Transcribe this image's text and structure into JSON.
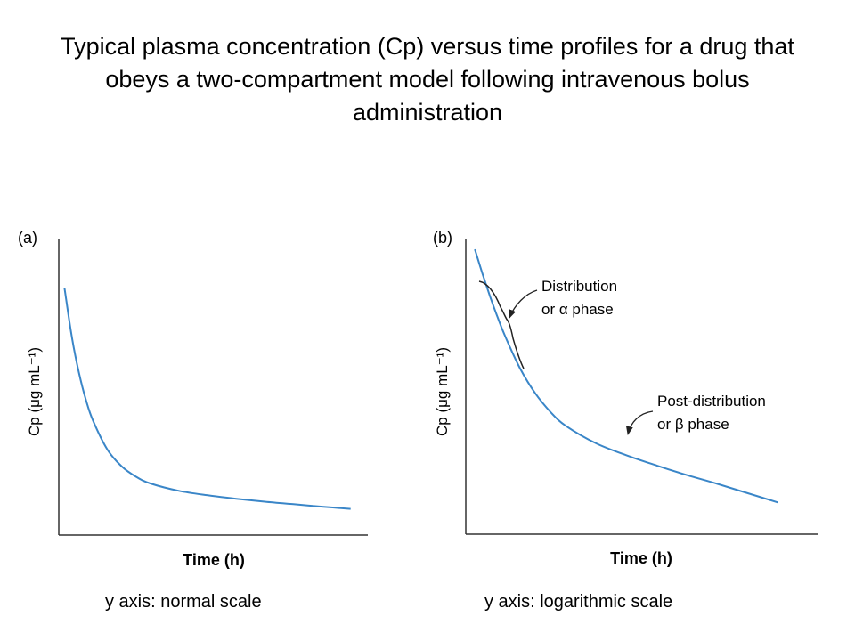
{
  "title": "Typical plasma concentration (Cp) versus time profiles for a drug that obeys a two-compartment model following intravenous bolus administration",
  "colors": {
    "curve": "#3a86c8",
    "axis": "#333333",
    "text": "#000000"
  },
  "panels": [
    {
      "tag": "(a)",
      "xlabel": "Time (h)",
      "ylabel": "Cp (μg mL⁻¹)",
      "caption": "y axis: normal scale"
    },
    {
      "tag": "(b)",
      "xlabel": "Time (h)",
      "ylabel": "Cp (μg mL⁻¹)",
      "caption": "y axis: logarithmic scale",
      "annotations": [
        {
          "line1": "Distribution",
          "line2": "or α phase"
        },
        {
          "line1": "Post-distribution",
          "line2": "or β phase"
        }
      ]
    }
  ],
  "chart_data": [
    {
      "type": "line",
      "panel": "(a)",
      "xlabel": "Time (h)",
      "ylabel": "Cp (μg mL⁻¹)",
      "yscale": "linear",
      "x": [
        0,
        0.25,
        0.5,
        0.75,
        1,
        1.5,
        2,
        2.5,
        3,
        4,
        5,
        6,
        7,
        8,
        9,
        10
      ],
      "y": [
        10,
        8.06,
        6.59,
        5.47,
        4.62,
        3.46,
        2.78,
        2.36,
        2.09,
        1.79,
        1.61,
        1.47,
        1.35,
        1.25,
        1.15,
        1.06
      ],
      "xlim": [
        -0.2,
        10.6
      ],
      "ylim": [
        0,
        12
      ],
      "grid": false
    },
    {
      "type": "line",
      "panel": "(b)",
      "xlabel": "Time (h)",
      "ylabel": "Cp (μg mL⁻¹)",
      "yscale": "log",
      "x": [
        0,
        0.25,
        0.5,
        0.75,
        1,
        1.5,
        2,
        2.5,
        3,
        4,
        5,
        6,
        7,
        8,
        9,
        10
      ],
      "y": [
        10,
        8.06,
        6.59,
        5.47,
        4.62,
        3.46,
        2.78,
        2.36,
        2.09,
        1.79,
        1.61,
        1.47,
        1.35,
        1.25,
        1.15,
        1.06
      ],
      "xlim": [
        -0.3,
        11.3
      ],
      "ylim": [
        0.8,
        11
      ],
      "grid": false,
      "annotations": [
        "Distribution or α phase",
        "Post-distribution or β phase"
      ]
    }
  ]
}
